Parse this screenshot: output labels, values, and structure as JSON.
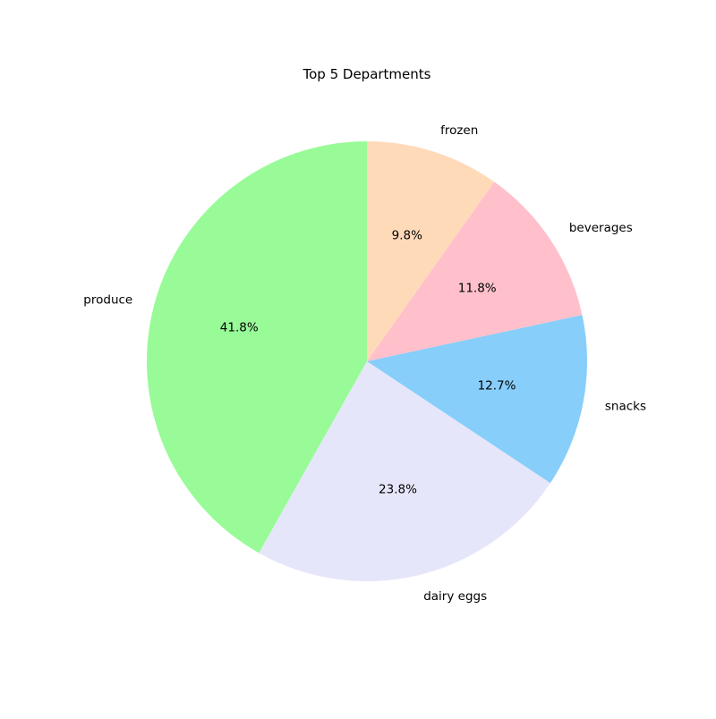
{
  "chart_data": {
    "type": "pie",
    "title": "Top 5 Departments",
    "start_angle_deg": 90,
    "direction": "counterclockwise",
    "slices": [
      {
        "label": "produce",
        "value": 41.8,
        "pct_label": "41.8%",
        "color": "#98FB98"
      },
      {
        "label": "dairy eggs",
        "value": 23.8,
        "pct_label": "23.8%",
        "color": "#E6E6FA"
      },
      {
        "label": "snacks",
        "value": 12.7,
        "pct_label": "12.7%",
        "color": "#87CEFA"
      },
      {
        "label": "beverages",
        "value": 11.8,
        "pct_label": "11.8%",
        "color": "#FFC0CB"
      },
      {
        "label": "frozen",
        "value": 9.8,
        "pct_label": "9.8%",
        "color": "#FFDAB9"
      }
    ]
  }
}
